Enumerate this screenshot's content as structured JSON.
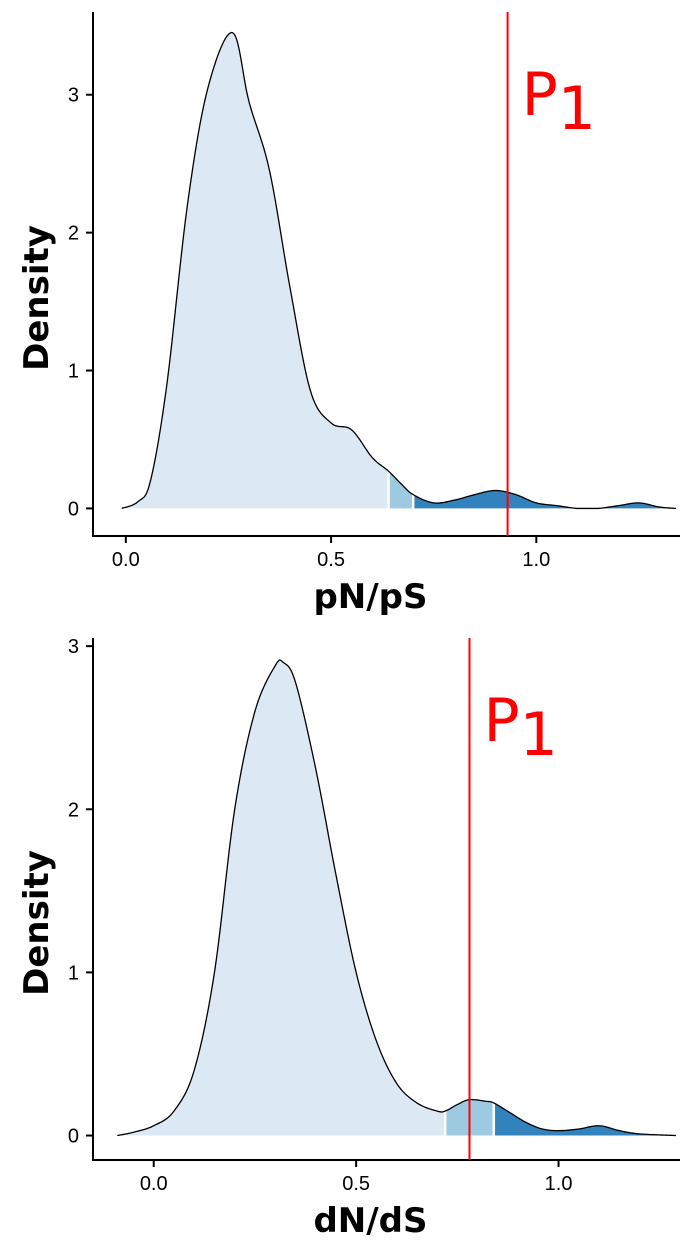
{
  "colors": {
    "region_light": "#dce9f5",
    "region_mid": "#9ecae1",
    "region_dark": "#3182bd",
    "outline": "#000000",
    "marker": "#ff0000",
    "separator": "#ffffff"
  },
  "chart_data": [
    {
      "type": "area",
      "xlabel": "pN/pS",
      "ylabel": "Density",
      "xlim": [
        -0.08,
        1.35
      ],
      "ylim": [
        -0.2,
        3.6
      ],
      "x_ticks": [
        0.0,
        0.5,
        1.0
      ],
      "x_tick_labels": [
        "0.0",
        "0.5",
        "1.0"
      ],
      "y_ticks": [
        0,
        1,
        2,
        3
      ],
      "y_tick_labels": [
        "0",
        "1",
        "2",
        "3"
      ],
      "grid": false,
      "x": [
        -0.01,
        0.03,
        0.06,
        0.1,
        0.15,
        0.2,
        0.26,
        0.3,
        0.35,
        0.4,
        0.45,
        0.5,
        0.55,
        0.6,
        0.64,
        0.67,
        0.7,
        0.75,
        0.8,
        0.85,
        0.9,
        0.95,
        1.0,
        1.05,
        1.1,
        1.15,
        1.2,
        1.25,
        1.3,
        1.34
      ],
      "y": [
        0.0,
        0.05,
        0.2,
        0.9,
        2.2,
        3.05,
        3.45,
        2.95,
        2.45,
        1.6,
        0.85,
        0.62,
        0.57,
        0.37,
        0.27,
        0.18,
        0.1,
        0.04,
        0.06,
        0.1,
        0.13,
        0.1,
        0.04,
        0.02,
        0.0,
        0.0,
        0.02,
        0.04,
        0.01,
        0.0
      ],
      "regions": [
        {
          "from": -0.01,
          "to": 0.64,
          "shade": "light"
        },
        {
          "from": 0.64,
          "to": 0.7,
          "shade": "mid"
        },
        {
          "from": 0.7,
          "to": 1.34,
          "shade": "dark"
        }
      ],
      "vline": {
        "x": 0.93,
        "label": "P",
        "label_sub": "1"
      }
    },
    {
      "type": "area",
      "xlabel": "dN/dS",
      "ylabel": "Density",
      "xlim": [
        -0.15,
        1.3
      ],
      "ylim": [
        -0.15,
        3.05
      ],
      "x_ticks": [
        0.0,
        0.5,
        1.0
      ],
      "x_tick_labels": [
        "0.0",
        "0.5",
        "1.0"
      ],
      "y_ticks": [
        0,
        1,
        2,
        3
      ],
      "y_tick_labels": [
        "0",
        "1",
        "2",
        "3"
      ],
      "grid": false,
      "x": [
        -0.09,
        -0.05,
        0.0,
        0.05,
        0.1,
        0.15,
        0.2,
        0.25,
        0.3,
        0.32,
        0.35,
        0.4,
        0.45,
        0.5,
        0.55,
        0.6,
        0.65,
        0.7,
        0.72,
        0.75,
        0.78,
        0.82,
        0.84,
        0.88,
        0.92,
        0.96,
        1.0,
        1.05,
        1.1,
        1.15,
        1.2,
        1.29
      ],
      "y": [
        0.0,
        0.02,
        0.06,
        0.15,
        0.4,
        1.0,
        2.0,
        2.6,
        2.88,
        2.9,
        2.78,
        2.25,
        1.6,
        1.0,
        0.58,
        0.32,
        0.2,
        0.15,
        0.15,
        0.19,
        0.22,
        0.21,
        0.2,
        0.14,
        0.08,
        0.04,
        0.03,
        0.04,
        0.06,
        0.03,
        0.01,
        0.0
      ],
      "regions": [
        {
          "from": -0.09,
          "to": 0.72,
          "shade": "light"
        },
        {
          "from": 0.72,
          "to": 0.84,
          "shade": "mid"
        },
        {
          "from": 0.84,
          "to": 1.29,
          "shade": "dark"
        }
      ],
      "vline": {
        "x": 0.78,
        "label": "P",
        "label_sub": "1"
      }
    }
  ]
}
